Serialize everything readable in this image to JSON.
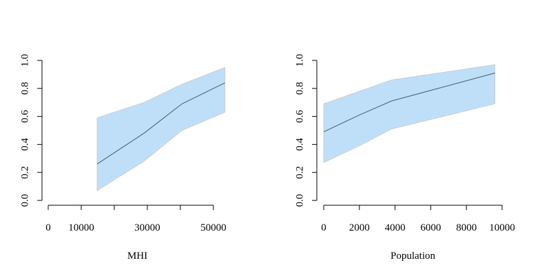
{
  "chart_data": [
    {
      "type": "line",
      "title": "",
      "xlabel": "MHI",
      "ylabel": "",
      "xlim": [
        0,
        54000
      ],
      "ylim": [
        0,
        1
      ],
      "x_ticks": [
        0,
        10000,
        20000,
        30000,
        40000,
        50000
      ],
      "x_tick_labels": [
        "0",
        "10000",
        "",
        "30000",
        "",
        "50000"
      ],
      "y_ticks": [
        0,
        0.2,
        0.4,
        0.6,
        0.8,
        1.0
      ],
      "y_tick_labels": [
        "0.0",
        "0.2",
        "0.4",
        "0.6",
        "0.8",
        "1.0"
      ],
      "grid": false,
      "series": [
        {
          "x": [
            14800,
            29000,
            40500,
            53500
          ],
          "y": [
            0.26,
            0.48,
            0.69,
            0.84
          ],
          "lower": [
            0.07,
            0.28,
            0.5,
            0.63
          ],
          "upper": [
            0.59,
            0.7,
            0.83,
            0.95
          ]
        }
      ]
    },
    {
      "type": "line",
      "title": "",
      "xlabel": "Population",
      "ylabel": "",
      "xlim": [
        0,
        10000
      ],
      "ylim": [
        0,
        1
      ],
      "x_ticks": [
        0,
        2000,
        4000,
        6000,
        8000,
        10000
      ],
      "x_tick_labels": [
        "0",
        "2000",
        "4000",
        "6000",
        "8000",
        "10000"
      ],
      "y_ticks": [
        0,
        0.2,
        0.4,
        0.6,
        0.8,
        1.0
      ],
      "y_tick_labels": [
        "0.0",
        "0.2",
        "0.4",
        "0.6",
        "0.8",
        "1.0"
      ],
      "grid": false,
      "series": [
        {
          "x": [
            0,
            2000,
            3800,
            9600
          ],
          "y": [
            0.49,
            0.61,
            0.71,
            0.91
          ],
          "lower": [
            0.27,
            0.39,
            0.51,
            0.69
          ],
          "upper": [
            0.69,
            0.78,
            0.86,
            0.97
          ]
        }
      ]
    }
  ],
  "colors": {
    "band_fill": "#bfdff9",
    "band_edge": "#c8c8c8",
    "line": "#3f5e6e",
    "axis": "#000000"
  }
}
